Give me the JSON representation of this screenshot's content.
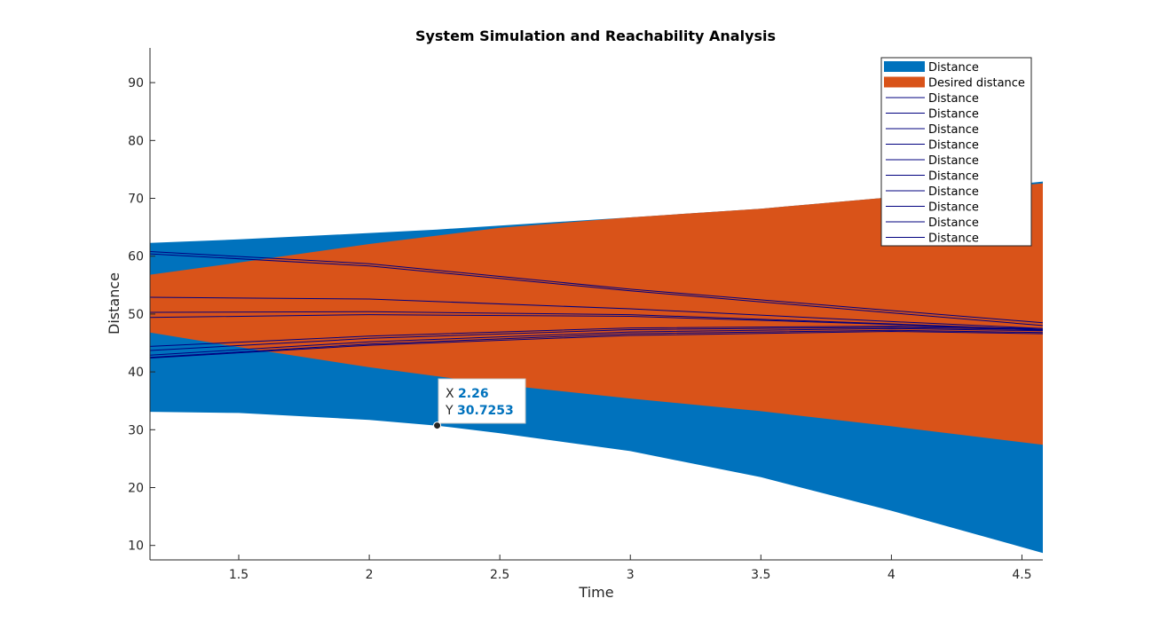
{
  "chart_data": {
    "type": "area",
    "title": "System Simulation and Reachability Analysis",
    "xlabel": "Time",
    "ylabel": "Distance",
    "xlim": [
      1.16,
      4.58
    ],
    "ylim": [
      7.5,
      96
    ],
    "xticks": [
      1.5,
      2,
      2.5,
      3,
      3.5,
      4,
      4.5
    ],
    "xtick_labels": [
      "1.5",
      "2",
      "2.5",
      "3",
      "3.5",
      "4",
      "4.5"
    ],
    "yticks": [
      10,
      20,
      30,
      40,
      50,
      60,
      70,
      80,
      90
    ],
    "ytick_labels": [
      "10",
      "20",
      "30",
      "40",
      "50",
      "60",
      "70",
      "80",
      "90"
    ],
    "grid": false,
    "legend_position": "top-right",
    "bands": [
      {
        "name": "Distance",
        "color": "#0072bd",
        "x": [
          1.16,
          1.5,
          2.0,
          2.26,
          2.5,
          3.0,
          3.5,
          4.0,
          4.58
        ],
        "upper": [
          62.3,
          62.9,
          64.0,
          64.6,
          65.3,
          66.7,
          68.2,
          70.2,
          72.9
        ],
        "lower": [
          33.1,
          32.9,
          31.7,
          30.7,
          29.4,
          26.3,
          21.8,
          16.0,
          8.7
        ]
      },
      {
        "name": "Desired distance",
        "color": "#d95319",
        "x": [
          1.16,
          1.5,
          2.0,
          2.5,
          3.0,
          3.5,
          4.0,
          4.58
        ],
        "upper": [
          56.8,
          58.9,
          62.1,
          64.9,
          66.7,
          68.2,
          70.2,
          72.6
        ],
        "lower": [
          46.8,
          44.3,
          40.8,
          37.8,
          35.4,
          33.2,
          30.6,
          27.4
        ]
      }
    ],
    "series": [
      {
        "name": "Distance",
        "color": "#00007f",
        "x": [
          1.16,
          2.0,
          3.0,
          4.0,
          4.58
        ],
        "values": [
          60.8,
          58.7,
          54.3,
          50.6,
          48.5
        ]
      },
      {
        "name": "Distance",
        "color": "#00007f",
        "x": [
          1.16,
          2.0,
          3.0,
          4.0,
          4.58
        ],
        "values": [
          60.4,
          58.3,
          54.0,
          50.2,
          48.0
        ]
      },
      {
        "name": "Distance",
        "color": "#00007f",
        "x": [
          1.16,
          2.0,
          3.0,
          4.0,
          4.58
        ],
        "values": [
          52.9,
          52.6,
          50.9,
          48.7,
          47.5
        ]
      },
      {
        "name": "Distance",
        "color": "#00007f",
        "x": [
          1.16,
          2.0,
          3.0,
          4.0,
          4.58
        ],
        "values": [
          50.3,
          50.4,
          49.9,
          48.3,
          47.3
        ]
      },
      {
        "name": "Distance",
        "color": "#00007f",
        "x": [
          1.16,
          2.0,
          3.0,
          4.0,
          4.58
        ],
        "values": [
          49.4,
          49.9,
          49.6,
          48.2,
          47.2
        ]
      },
      {
        "name": "Distance",
        "color": "#00007f",
        "x": [
          1.16,
          2.0,
          3.0,
          4.0,
          4.58
        ],
        "values": [
          44.4,
          46.2,
          47.6,
          47.9,
          47.5
        ]
      },
      {
        "name": "Distance",
        "color": "#00007f",
        "x": [
          1.16,
          2.0,
          3.0,
          4.0,
          4.58
        ],
        "values": [
          43.7,
          45.8,
          47.3,
          47.7,
          47.3
        ]
      },
      {
        "name": "Distance",
        "color": "#00007f",
        "x": [
          1.16,
          2.0,
          3.0,
          4.0,
          4.58
        ],
        "values": [
          42.9,
          45.2,
          46.9,
          47.5,
          47.1
        ]
      },
      {
        "name": "Distance",
        "color": "#00007f",
        "x": [
          1.16,
          2.0,
          3.0,
          4.0,
          4.58
        ],
        "values": [
          42.5,
          44.8,
          46.6,
          47.2,
          46.8
        ]
      },
      {
        "name": "Distance",
        "color": "#00007f",
        "x": [
          1.16,
          2.0,
          3.0,
          4.0,
          4.58
        ],
        "values": [
          42.4,
          44.6,
          46.3,
          47.0,
          46.6
        ]
      }
    ],
    "legend_entries": [
      {
        "label": "Distance",
        "kind": "patch",
        "color": "#0072bd"
      },
      {
        "label": "Desired distance",
        "kind": "patch",
        "color": "#d95319"
      },
      {
        "label": "Distance",
        "kind": "line",
        "color": "#00007f"
      },
      {
        "label": "Distance",
        "kind": "line",
        "color": "#00007f"
      },
      {
        "label": "Distance",
        "kind": "line",
        "color": "#00007f"
      },
      {
        "label": "Distance",
        "kind": "line",
        "color": "#00007f"
      },
      {
        "label": "Distance",
        "kind": "line",
        "color": "#00007f"
      },
      {
        "label": "Distance",
        "kind": "line",
        "color": "#00007f"
      },
      {
        "label": "Distance",
        "kind": "line",
        "color": "#00007f"
      },
      {
        "label": "Distance",
        "kind": "line",
        "color": "#00007f"
      },
      {
        "label": "Distance",
        "kind": "line",
        "color": "#00007f"
      },
      {
        "label": "Distance",
        "kind": "line",
        "color": "#00007f"
      }
    ],
    "datatip": {
      "x": 2.26,
      "y": 30.7253,
      "x_label": "X",
      "y_label": "Y",
      "x_text": "2.26",
      "y_text": "30.7253"
    }
  }
}
